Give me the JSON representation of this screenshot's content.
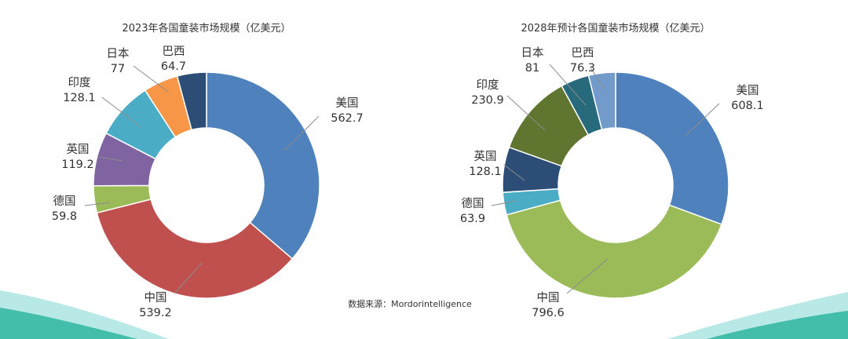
{
  "source_text": "数据来源：Mordorintelligence",
  "colors": {
    "bottom_wave_teal": "#2db6a0",
    "bottom_wave_light": "#b9e9e6"
  },
  "chart_data": [
    {
      "type": "pie",
      "donut": true,
      "title": "2023年各国童装市场规模（亿美元）",
      "unit": "亿美元",
      "slices": [
        {
          "name": "美国",
          "value": 562.7,
          "value_label": "562.7",
          "color": "#4f81bd"
        },
        {
          "name": "中国",
          "value": 539.2,
          "value_label": "539.2",
          "color": "#c0504d"
        },
        {
          "name": "德国",
          "value": 59.8,
          "value_label": "59.8",
          "color": "#9bbb59"
        },
        {
          "name": "英国",
          "value": 119.2,
          "value_label": "119.2",
          "color": "#8064a2"
        },
        {
          "name": "印度",
          "value": 128.1,
          "value_label": "128.1",
          "color": "#4bacc6"
        },
        {
          "name": "日本",
          "value": 77,
          "value_label": "77",
          "color": "#f79646"
        },
        {
          "name": "巴西",
          "value": 64.7,
          "value_label": "64.7",
          "color": "#2c4d75"
        }
      ]
    },
    {
      "type": "pie",
      "donut": true,
      "title": "2028年预计各国童装市场规模（亿美元）",
      "unit": "亿美元",
      "slices": [
        {
          "name": "美国",
          "value": 608.1,
          "value_label": "608.1",
          "color": "#4f81bd"
        },
        {
          "name": "中国",
          "value": 796.6,
          "value_label": "796.6",
          "color": "#9bbb59"
        },
        {
          "name": "德国",
          "value": 63.9,
          "value_label": "63.9",
          "color": "#4bacc6"
        },
        {
          "name": "英国",
          "value": 128.1,
          "value_label": "128.1",
          "color": "#2c4d75"
        },
        {
          "name": "印度",
          "value": 230.9,
          "value_label": "230.9",
          "color": "#5f7530"
        },
        {
          "name": "日本",
          "value": 81,
          "value_label": "81",
          "color": "#276a7c"
        },
        {
          "name": "巴西",
          "value": 76.3,
          "value_label": "76.3",
          "color": "#729aca"
        }
      ]
    }
  ]
}
